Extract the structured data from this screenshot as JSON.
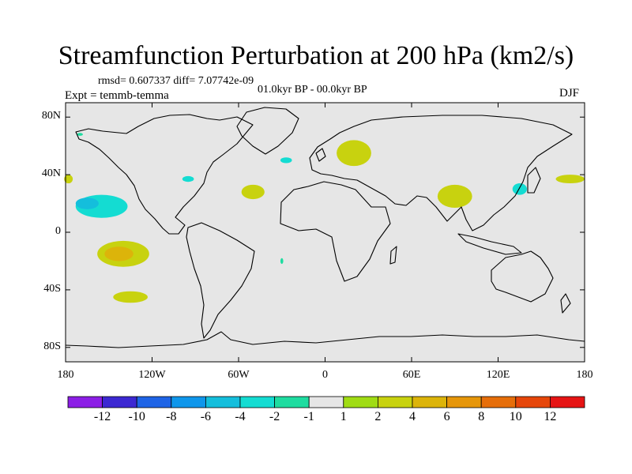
{
  "chart_data": {
    "type": "heatmap",
    "title": "Streamfunction Perturbation at 200 hPa (km2/s)",
    "stats": "rmsd= 0.607337 diff= 7.07742e-09",
    "period": "01.0kyr BP - 00.0kyr BP",
    "experiment": "Expt = temmb-temma",
    "season": "DJF",
    "projection": "cylindrical-equidistant",
    "xlim": [
      -180,
      180
    ],
    "ylim": [
      -90,
      90
    ],
    "x_ticks": [
      {
        "value": -180,
        "label": "180"
      },
      {
        "value": -120,
        "label": "120W"
      },
      {
        "value": -60,
        "label": "60W"
      },
      {
        "value": 0,
        "label": "0"
      },
      {
        "value": 60,
        "label": "60E"
      },
      {
        "value": 120,
        "label": "120E"
      },
      {
        "value": 180,
        "label": "180"
      }
    ],
    "y_ticks": [
      {
        "value": 80,
        "label": "80N"
      },
      {
        "value": 40,
        "label": "40N"
      },
      {
        "value": 0,
        "label": "0"
      },
      {
        "value": -40,
        "label": "40S"
      },
      {
        "value": -80,
        "label": "80S"
      }
    ],
    "colorbar": {
      "colors": [
        "#8c1ee6",
        "#3c28d2",
        "#1e64e6",
        "#0f96eb",
        "#14bedc",
        "#14dcd2",
        "#1edca0",
        "#e6e6e6",
        "#a0dc14",
        "#c8d20f",
        "#dcb40a",
        "#e6960a",
        "#e66e0a",
        "#e6460a",
        "#e61414"
      ],
      "labels": [
        "-12",
        "-10",
        "-8",
        "-6",
        "-4",
        "-2",
        "-1",
        "1",
        "2",
        "4",
        "6",
        "8",
        "10",
        "12"
      ]
    },
    "anomalies": [
      {
        "lon": -155,
        "lat": 18,
        "rx": 18,
        "ry": 8,
        "level": "-2"
      },
      {
        "lon": -165,
        "lat": 20,
        "rx": 8,
        "ry": 4,
        "level": "-4"
      },
      {
        "lon": -140,
        "lat": -15,
        "rx": 18,
        "ry": 9,
        "level": "2"
      },
      {
        "lon": -143,
        "lat": -15,
        "rx": 10,
        "ry": 5,
        "level": "4"
      },
      {
        "lon": -135,
        "lat": -45,
        "rx": 12,
        "ry": 4,
        "level": "2"
      },
      {
        "lon": -95,
        "lat": 37,
        "rx": 4,
        "ry": 2,
        "level": "-2"
      },
      {
        "lon": -50,
        "lat": 28,
        "rx": 8,
        "ry": 5,
        "level": "2"
      },
      {
        "lon": -27,
        "lat": 50,
        "rx": 4,
        "ry": 2,
        "level": "-2"
      },
      {
        "lon": 20,
        "lat": 55,
        "rx": 12,
        "ry": 9,
        "level": "2"
      },
      {
        "lon": 90,
        "lat": 25,
        "rx": 12,
        "ry": 8,
        "level": "2"
      },
      {
        "lon": 135,
        "lat": 30,
        "rx": 5,
        "ry": 4,
        "level": "-2"
      },
      {
        "lon": 170,
        "lat": 37,
        "rx": 10,
        "ry": 3,
        "level": "2"
      },
      {
        "lon": -178,
        "lat": 37,
        "rx": 3,
        "ry": 3,
        "level": "2"
      },
      {
        "lon": -170,
        "lat": 68,
        "rx": 2,
        "ry": 1,
        "level": "-1"
      },
      {
        "lon": -30,
        "lat": -20,
        "rx": 1,
        "ry": 2,
        "level": "-1"
      }
    ]
  }
}
